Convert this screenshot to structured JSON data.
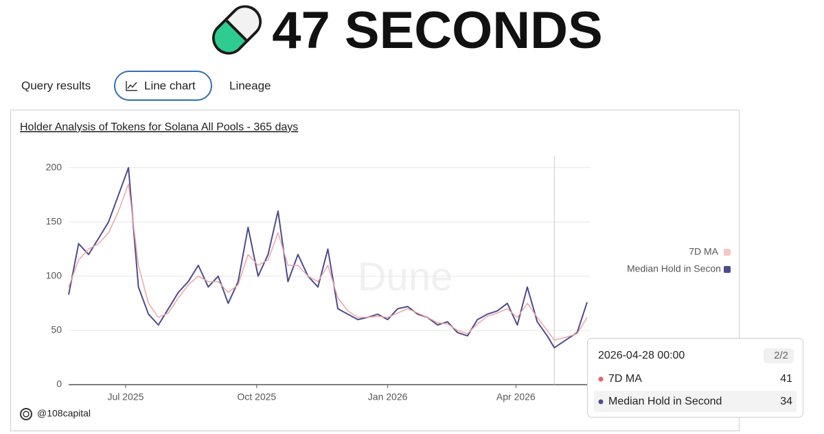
{
  "header": {
    "title": "47 SECONDS"
  },
  "tabs": [
    "Query results",
    "Line chart",
    "Lineage"
  ],
  "chart_data": {
    "type": "line",
    "title": "Holder Analysis of Tokens for Solana All Pools - 365 days",
    "x": [
      "2025-05-22",
      "2025-05-29",
      "2025-06-05",
      "2025-06-12",
      "2025-06-19",
      "2025-06-26",
      "2025-07-03",
      "2025-07-10",
      "2025-07-17",
      "2025-07-24",
      "2025-07-31",
      "2025-08-07",
      "2025-08-14",
      "2025-08-21",
      "2025-08-28",
      "2025-09-04",
      "2025-09-11",
      "2025-09-18",
      "2025-09-25",
      "2025-10-02",
      "2025-10-09",
      "2025-10-16",
      "2025-10-23",
      "2025-10-30",
      "2025-11-06",
      "2025-11-13",
      "2025-11-20",
      "2025-11-27",
      "2025-12-04",
      "2025-12-11",
      "2025-12-18",
      "2025-12-25",
      "2026-01-01",
      "2026-01-08",
      "2026-01-15",
      "2026-01-22",
      "2026-01-29",
      "2026-02-05",
      "2026-02-12",
      "2026-02-19",
      "2026-02-26",
      "2026-03-05",
      "2026-03-12",
      "2026-03-19",
      "2026-03-26",
      "2026-04-02",
      "2026-04-09",
      "2026-04-16",
      "2026-04-23",
      "2026-04-28",
      "2026-05-07",
      "2026-05-14",
      "2026-05-21"
    ],
    "series": [
      {
        "name": "7D MA",
        "color": "#f0a3a6",
        "values": [
          90,
          115,
          125,
          130,
          140,
          160,
          185,
          110,
          75,
          62,
          66,
          80,
          92,
          100,
          95,
          95,
          85,
          92,
          120,
          110,
          115,
          140,
          110,
          110,
          100,
          95,
          110,
          80,
          68,
          62,
          62,
          63,
          62,
          66,
          70,
          66,
          62,
          57,
          56,
          50,
          47,
          56,
          63,
          66,
          70,
          62,
          75,
          62,
          50,
          41,
          44,
          47,
          62
        ]
      },
      {
        "name": "Median Hold in Second",
        "color": "#4d4b8e",
        "values": [
          83,
          130,
          120,
          135,
          150,
          175,
          200,
          90,
          65,
          55,
          70,
          85,
          95,
          110,
          90,
          100,
          75,
          95,
          145,
          100,
          120,
          160,
          95,
          120,
          100,
          90,
          125,
          70,
          65,
          60,
          62,
          65,
          60,
          70,
          72,
          65,
          62,
          55,
          58,
          48,
          45,
          60,
          65,
          68,
          75,
          55,
          90,
          58,
          45,
          34,
          42,
          48,
          76
        ]
      }
    ],
    "xlim": [
      "2025-05-22",
      "2026-05-21"
    ],
    "xticks": [
      {
        "value": "2025-07-01",
        "label": "Jul 2025"
      },
      {
        "value": "2025-10-01",
        "label": "Oct 2025"
      },
      {
        "value": "2026-01-01",
        "label": "Jan 2026"
      },
      {
        "value": "2026-04-01",
        "label": "Apr 2026"
      }
    ],
    "ylim": [
      0,
      220
    ],
    "yticks": [
      0,
      50,
      100,
      150,
      200
    ],
    "grid": true,
    "legend": "right",
    "watermark": "Dune",
    "tooltip": {
      "title": "2026-04-28 00:00",
      "page": "2/2",
      "items": [
        {
          "name": "7D MA",
          "value": 41
        },
        {
          "name": "Median Hold in Second",
          "value": 34
        }
      ]
    }
  },
  "footer": {
    "handle": "@108capital"
  }
}
